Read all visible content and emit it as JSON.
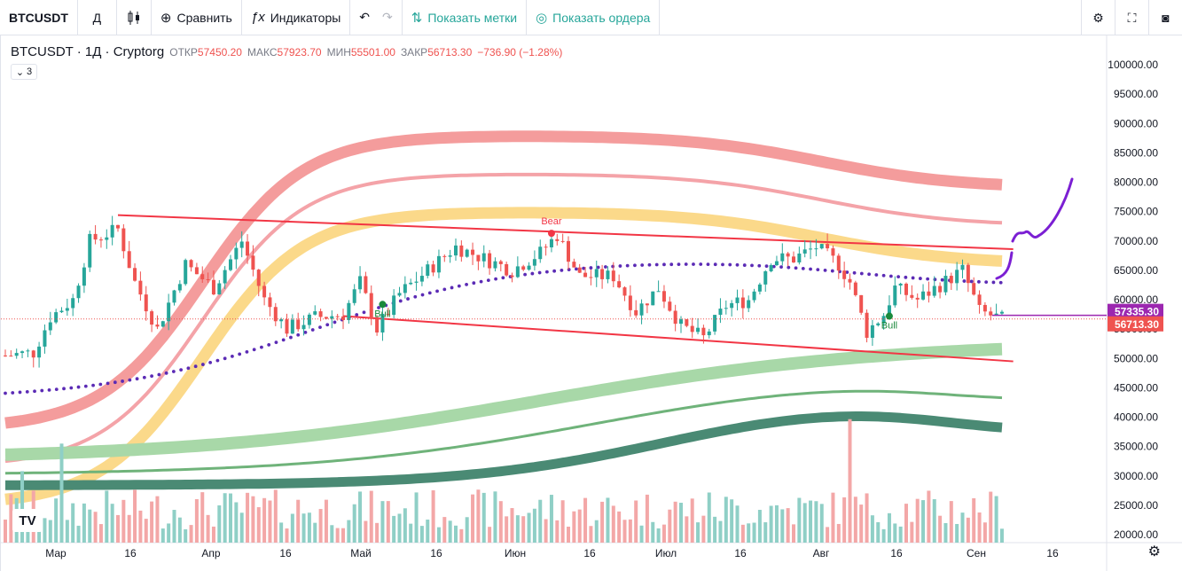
{
  "toolbar": {
    "symbol": "BTCUSDT",
    "interval": "Д",
    "chart_type_icon": "candles-icon",
    "compare_label": "Сравнить",
    "indicators_label": "Индикаторы",
    "show_marks_label": "Показать метки",
    "show_orders_label": "Показать ордера"
  },
  "legend": {
    "title": "BTCUSDT · 1Д · Cryptorg",
    "open_key": "ОТКР",
    "open": "57450.20",
    "high_key": "МАКС",
    "high": "57923.70",
    "low_key": "МИН",
    "low": "55501.00",
    "close_key": "ЗАКР",
    "close": "56713.30",
    "change": "−736.90 (−1.28%)",
    "toggle": "3"
  },
  "colors": {
    "up": "#26a69a",
    "down": "#ef5350",
    "trendline": "#f23645",
    "ma_dots": "#5b2bb5",
    "purple_price": "#9c27b0",
    "drawing": "#7b1fd3"
  },
  "chart_data": {
    "type": "candlestick",
    "price_axis": {
      "ticks": [
        "100000.00",
        "95000.00",
        "90000.00",
        "85000.00",
        "80000.00",
        "75000.00",
        "70000.00",
        "65000.00",
        "60000.00",
        "55000.00",
        "50000.00",
        "45000.00",
        "40000.00",
        "35000.00",
        "30000.00",
        "25000.00",
        "20000.00"
      ],
      "range": [
        19000,
        104000
      ]
    },
    "time_axis": {
      "ticks": [
        "Мар",
        "16",
        "Апр",
        "16",
        "Май",
        "16",
        "Июн",
        "16",
        "Июл",
        "16",
        "Авг",
        "16",
        "Сен",
        "16"
      ]
    },
    "price_labels": [
      {
        "text": "57335.30",
        "value": 57335.3,
        "color": "#9c27b0"
      },
      {
        "text": "56713.30",
        "value": 56713.3,
        "color": "#ef5350"
      }
    ],
    "signals": [
      {
        "text": "Bear",
        "day": 97,
        "value": 71300,
        "color": "#f23645"
      },
      {
        "text": "Bull",
        "day": 67,
        "value": 59200,
        "color": "#1b8a3c"
      },
      {
        "text": "Bull",
        "day": 157,
        "value": 57200,
        "color": "#1b8a3c"
      }
    ],
    "series_samples": "daily OHLC approximated from visible candles (day index from Feb 18 2021, ~6.35px/day)"
  }
}
